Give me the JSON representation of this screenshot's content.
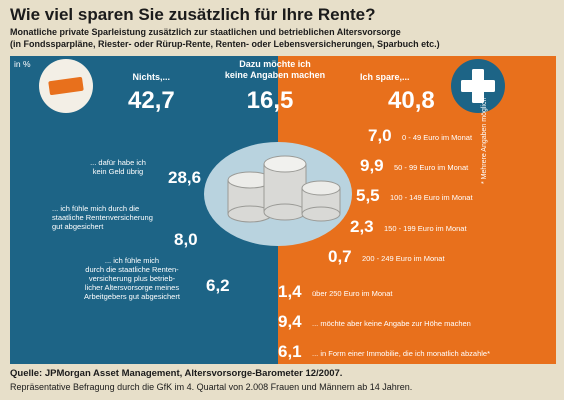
{
  "header": {
    "title": "Wie viel sparen Sie zusätzlich für Ihre Rente?",
    "subtitle_lines": [
      "Monatliche private Sparleistung zusätzlich zur staatlichen und betrieblichen Altersvorsorge",
      "(in Fondssparpläne, Riester- oder Rürup-Rente, Renten- oder Lebensversicherungen, Sparbuch etc.)"
    ]
  },
  "colors": {
    "blue": "#1d6486",
    "orange": "#e8701c",
    "white": "#ffffff",
    "background": "#e7dfc9"
  },
  "chart_data": {
    "type": "table",
    "unit_label": "in %",
    "headline": [
      {
        "label": "Nichts,...",
        "value": "42,7"
      },
      {
        "label_lines": [
          "Dazu möchte ich",
          "keine Angaben machen"
        ],
        "value": "16,5"
      },
      {
        "label": "Ich spare,...",
        "value": "40,8"
      }
    ],
    "nothing_reasons": [
      {
        "lines": [
          "... dafür habe ich",
          "kein Geld übrig"
        ],
        "value": "28,6"
      },
      {
        "lines": [
          "... ich fühle mich durch die",
          "staatliche Rentenversicherung",
          "gut abgesichert"
        ],
        "value": "8,0"
      },
      {
        "lines": [
          "... ich fühle mich",
          "durch die staatliche Renten-",
          "versicherung plus betrieb-",
          "licher Altersvorsorge meines",
          "Arbeitgebers gut abgesichert"
        ],
        "value": "6,2"
      }
    ],
    "saving_amounts": [
      {
        "value": "7,0",
        "label": "0 - 49 Euro im Monat"
      },
      {
        "value": "9,9",
        "label": "50 - 99 Euro im Monat"
      },
      {
        "value": "5,5",
        "label": "100 - 149 Euro im Monat"
      },
      {
        "value": "2,3",
        "label": "150 - 199 Euro im Monat"
      },
      {
        "value": "0,7",
        "label": "200 - 249 Euro im Monat"
      },
      {
        "value": "1,4",
        "label": "über 250 Euro im Monat"
      },
      {
        "value": "9,4",
        "label": "... möchte aber keine Angabe zur Höhe machen"
      },
      {
        "value": "6,1",
        "label": "... in Form einer Immobilie, die ich monatlich abzahle*"
      }
    ],
    "note": "* Mehrere Angaben möglich"
  },
  "footer": {
    "source": "Quelle: JPMorgan Asset Management, Altersvorsorge-Barometer 12/2007.",
    "method": "Repräsentative Befragung durch die GfK im 4. Quartal von 2.008 Frauen und Männern ab 14 Jahren."
  }
}
